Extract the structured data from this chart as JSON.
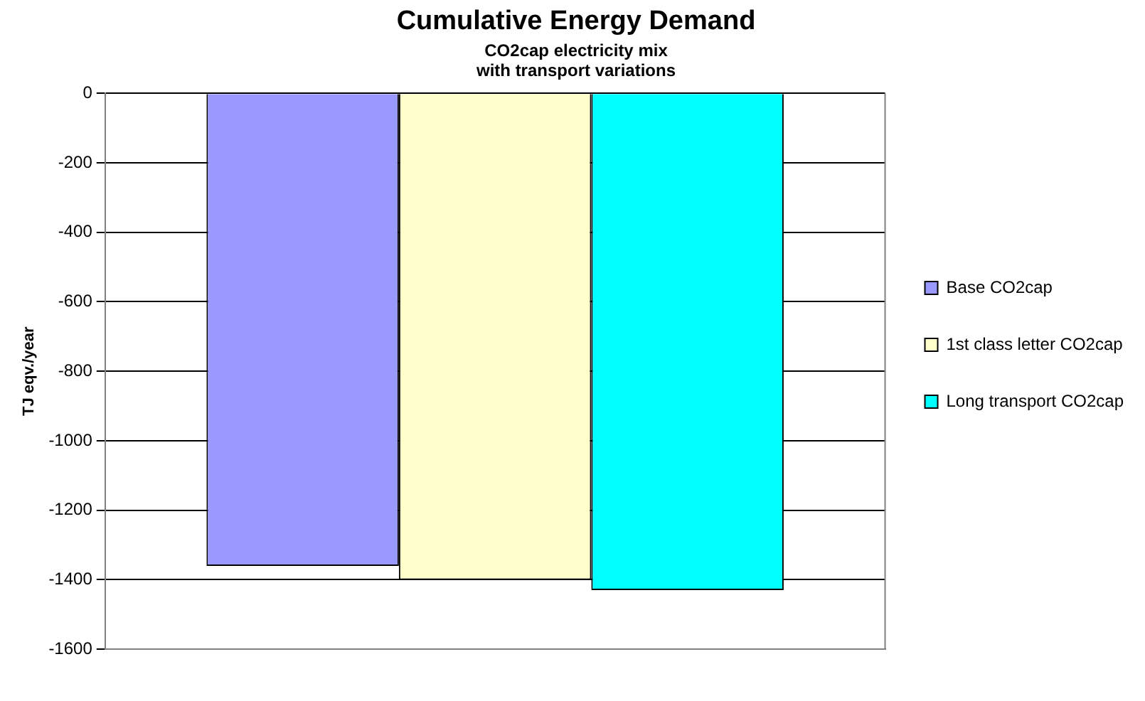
{
  "chart_data": {
    "type": "bar",
    "title": "Cumulative Energy Demand",
    "subtitle": "CO2cap electricity mix\nwith transport variations",
    "ylabel": "TJ eqv./year",
    "categories": [
      null
    ],
    "series": [
      {
        "name": "Base CO2cap",
        "color": "#9999ff",
        "values": [
          -1360
        ]
      },
      {
        "name": "1st class letter CO2cap",
        "color": "#ffffcc",
        "values": [
          -1400
        ]
      },
      {
        "name": "Long transport CO2cap",
        "color": "#00ffff",
        "values": [
          -1430
        ]
      }
    ],
    "ylim": [
      -1600,
      0
    ],
    "yticks": [
      0,
      -200,
      -400,
      -600,
      -800,
      -1000,
      -1200,
      -1400,
      -1600
    ],
    "grid": "y",
    "legend": "right"
  }
}
